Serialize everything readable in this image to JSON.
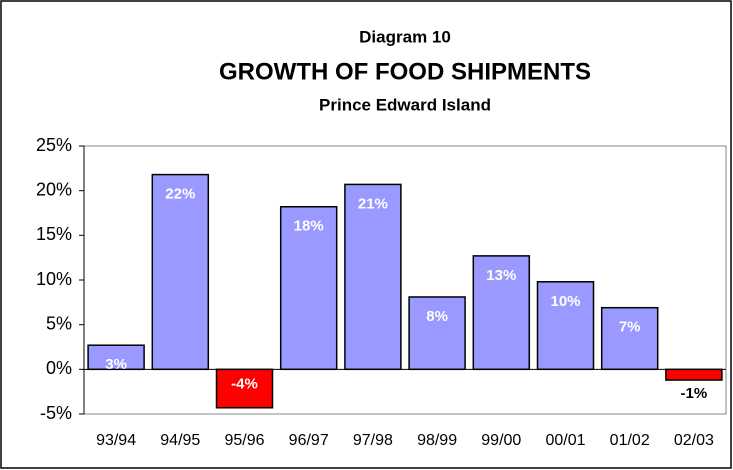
{
  "chart_data": {
    "type": "bar",
    "title": "Diagram 10",
    "subtitle": "GROWTH OF FOOD SHIPMENTS",
    "subtitle2": "Prince Edward Island",
    "categories": [
      "93/94",
      "94/95",
      "95/96",
      "96/97",
      "97/98",
      "98/99",
      "99/00",
      "00/01",
      "01/02",
      "02/03"
    ],
    "values": [
      2.7,
      21.8,
      -4.3,
      18.2,
      20.7,
      8.1,
      12.7,
      9.8,
      6.9,
      -1.2
    ],
    "value_labels": [
      "3%",
      "22%",
      "-4%",
      "18%",
      "21%",
      "8%",
      "13%",
      "10%",
      "7%",
      "-1%"
    ],
    "colors": [
      "#9999ff",
      "#9999ff",
      "#ff0000",
      "#9999ff",
      "#9999ff",
      "#9999ff",
      "#9999ff",
      "#9999ff",
      "#9999ff",
      "#ff0000"
    ],
    "ylim": [
      -5,
      25
    ],
    "yticks": [
      {
        "value": -5,
        "label": "-5%"
      },
      {
        "value": 0,
        "label": "0%"
      },
      {
        "value": 5,
        "label": "5%"
      },
      {
        "value": 10,
        "label": "10%"
      },
      {
        "value": 15,
        "label": "15%"
      },
      {
        "value": 20,
        "label": "20%"
      },
      {
        "value": 25,
        "label": "25%"
      }
    ],
    "grid": false
  }
}
